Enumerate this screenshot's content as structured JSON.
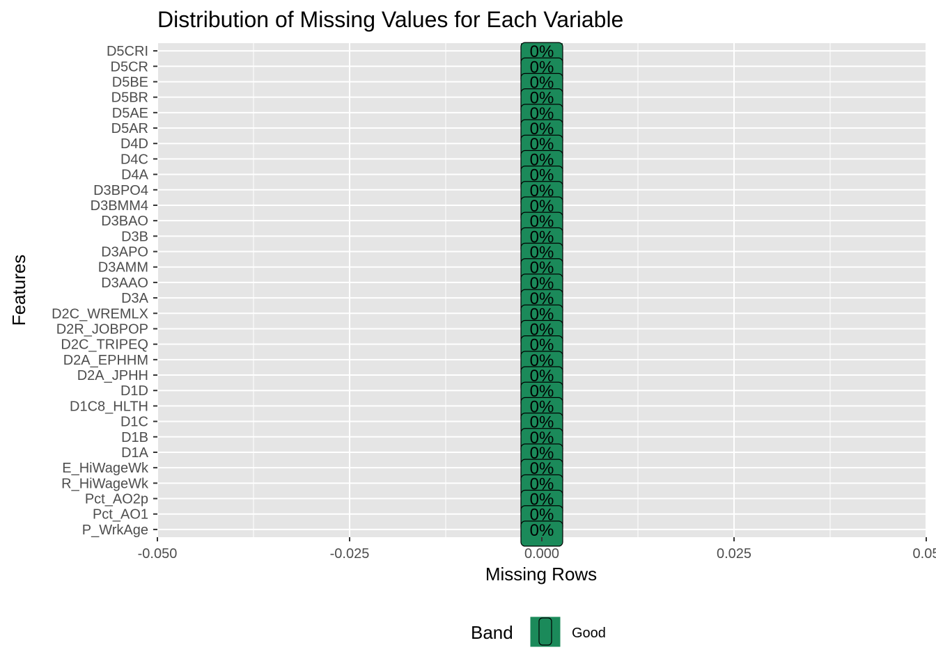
{
  "chart_data": {
    "type": "bar",
    "orientation": "horizontal",
    "title": "Distribution of Missing Values for Each Variable",
    "xlabel": "Missing Rows",
    "ylabel": "Features",
    "xlim": [
      -0.05,
      0.05
    ],
    "x_ticks": [
      "-0.050",
      "-0.025",
      "0.000",
      "0.025",
      "0.05"
    ],
    "x_tick_values": [
      -0.05,
      -0.025,
      0,
      0.025,
      0.05
    ],
    "x_minor_tick_values": [
      -0.0375,
      -0.0125,
      0.0125,
      0.0375
    ],
    "categories": [
      "D5CRI",
      "D5CR",
      "D5BE",
      "D5BR",
      "D5AE",
      "D5AR",
      "D4D",
      "D4C",
      "D4A",
      "D3BPO4",
      "D3BMM4",
      "D3BAO",
      "D3B",
      "D3APO",
      "D3AMM",
      "D3AAO",
      "D3A",
      "D2C_WREMLX",
      "D2R_JOBPOP",
      "D2C_TRIPEQ",
      "D2A_EPHHM",
      "D2A_JPHH",
      "D1D",
      "D1C8_HLTH",
      "D1C",
      "D1B",
      "D1A",
      "E_HiWageWk",
      "R_HiWageWk",
      "Pct_AO2p",
      "Pct_AO1",
      "P_WrkAge"
    ],
    "values": [
      0,
      0,
      0,
      0,
      0,
      0,
      0,
      0,
      0,
      0,
      0,
      0,
      0,
      0,
      0,
      0,
      0,
      0,
      0,
      0,
      0,
      0,
      0,
      0,
      0,
      0,
      0,
      0,
      0,
      0,
      0,
      0
    ],
    "bar_labels": [
      "0%",
      "0%",
      "0%",
      "0%",
      "0%",
      "0%",
      "0%",
      "0%",
      "0%",
      "0%",
      "0%",
      "0%",
      "0%",
      "0%",
      "0%",
      "0%",
      "0%",
      "0%",
      "0%",
      "0%",
      "0%",
      "0%",
      "0%",
      "0%",
      "0%",
      "0%",
      "0%",
      "0%",
      "0%",
      "0%",
      "0%",
      "0%"
    ],
    "legend": {
      "title": "Band",
      "entries": [
        {
          "label": "Good",
          "color": "#1b8a5a"
        }
      ],
      "position": "bottom"
    },
    "grid": true,
    "colors": {
      "panel_background": "#e5e5e5",
      "grid_major": "#ffffff",
      "bar_fill": "#1b8a5a",
      "bar_stroke": "#000000",
      "tick_text": "#4d4d4d"
    }
  }
}
